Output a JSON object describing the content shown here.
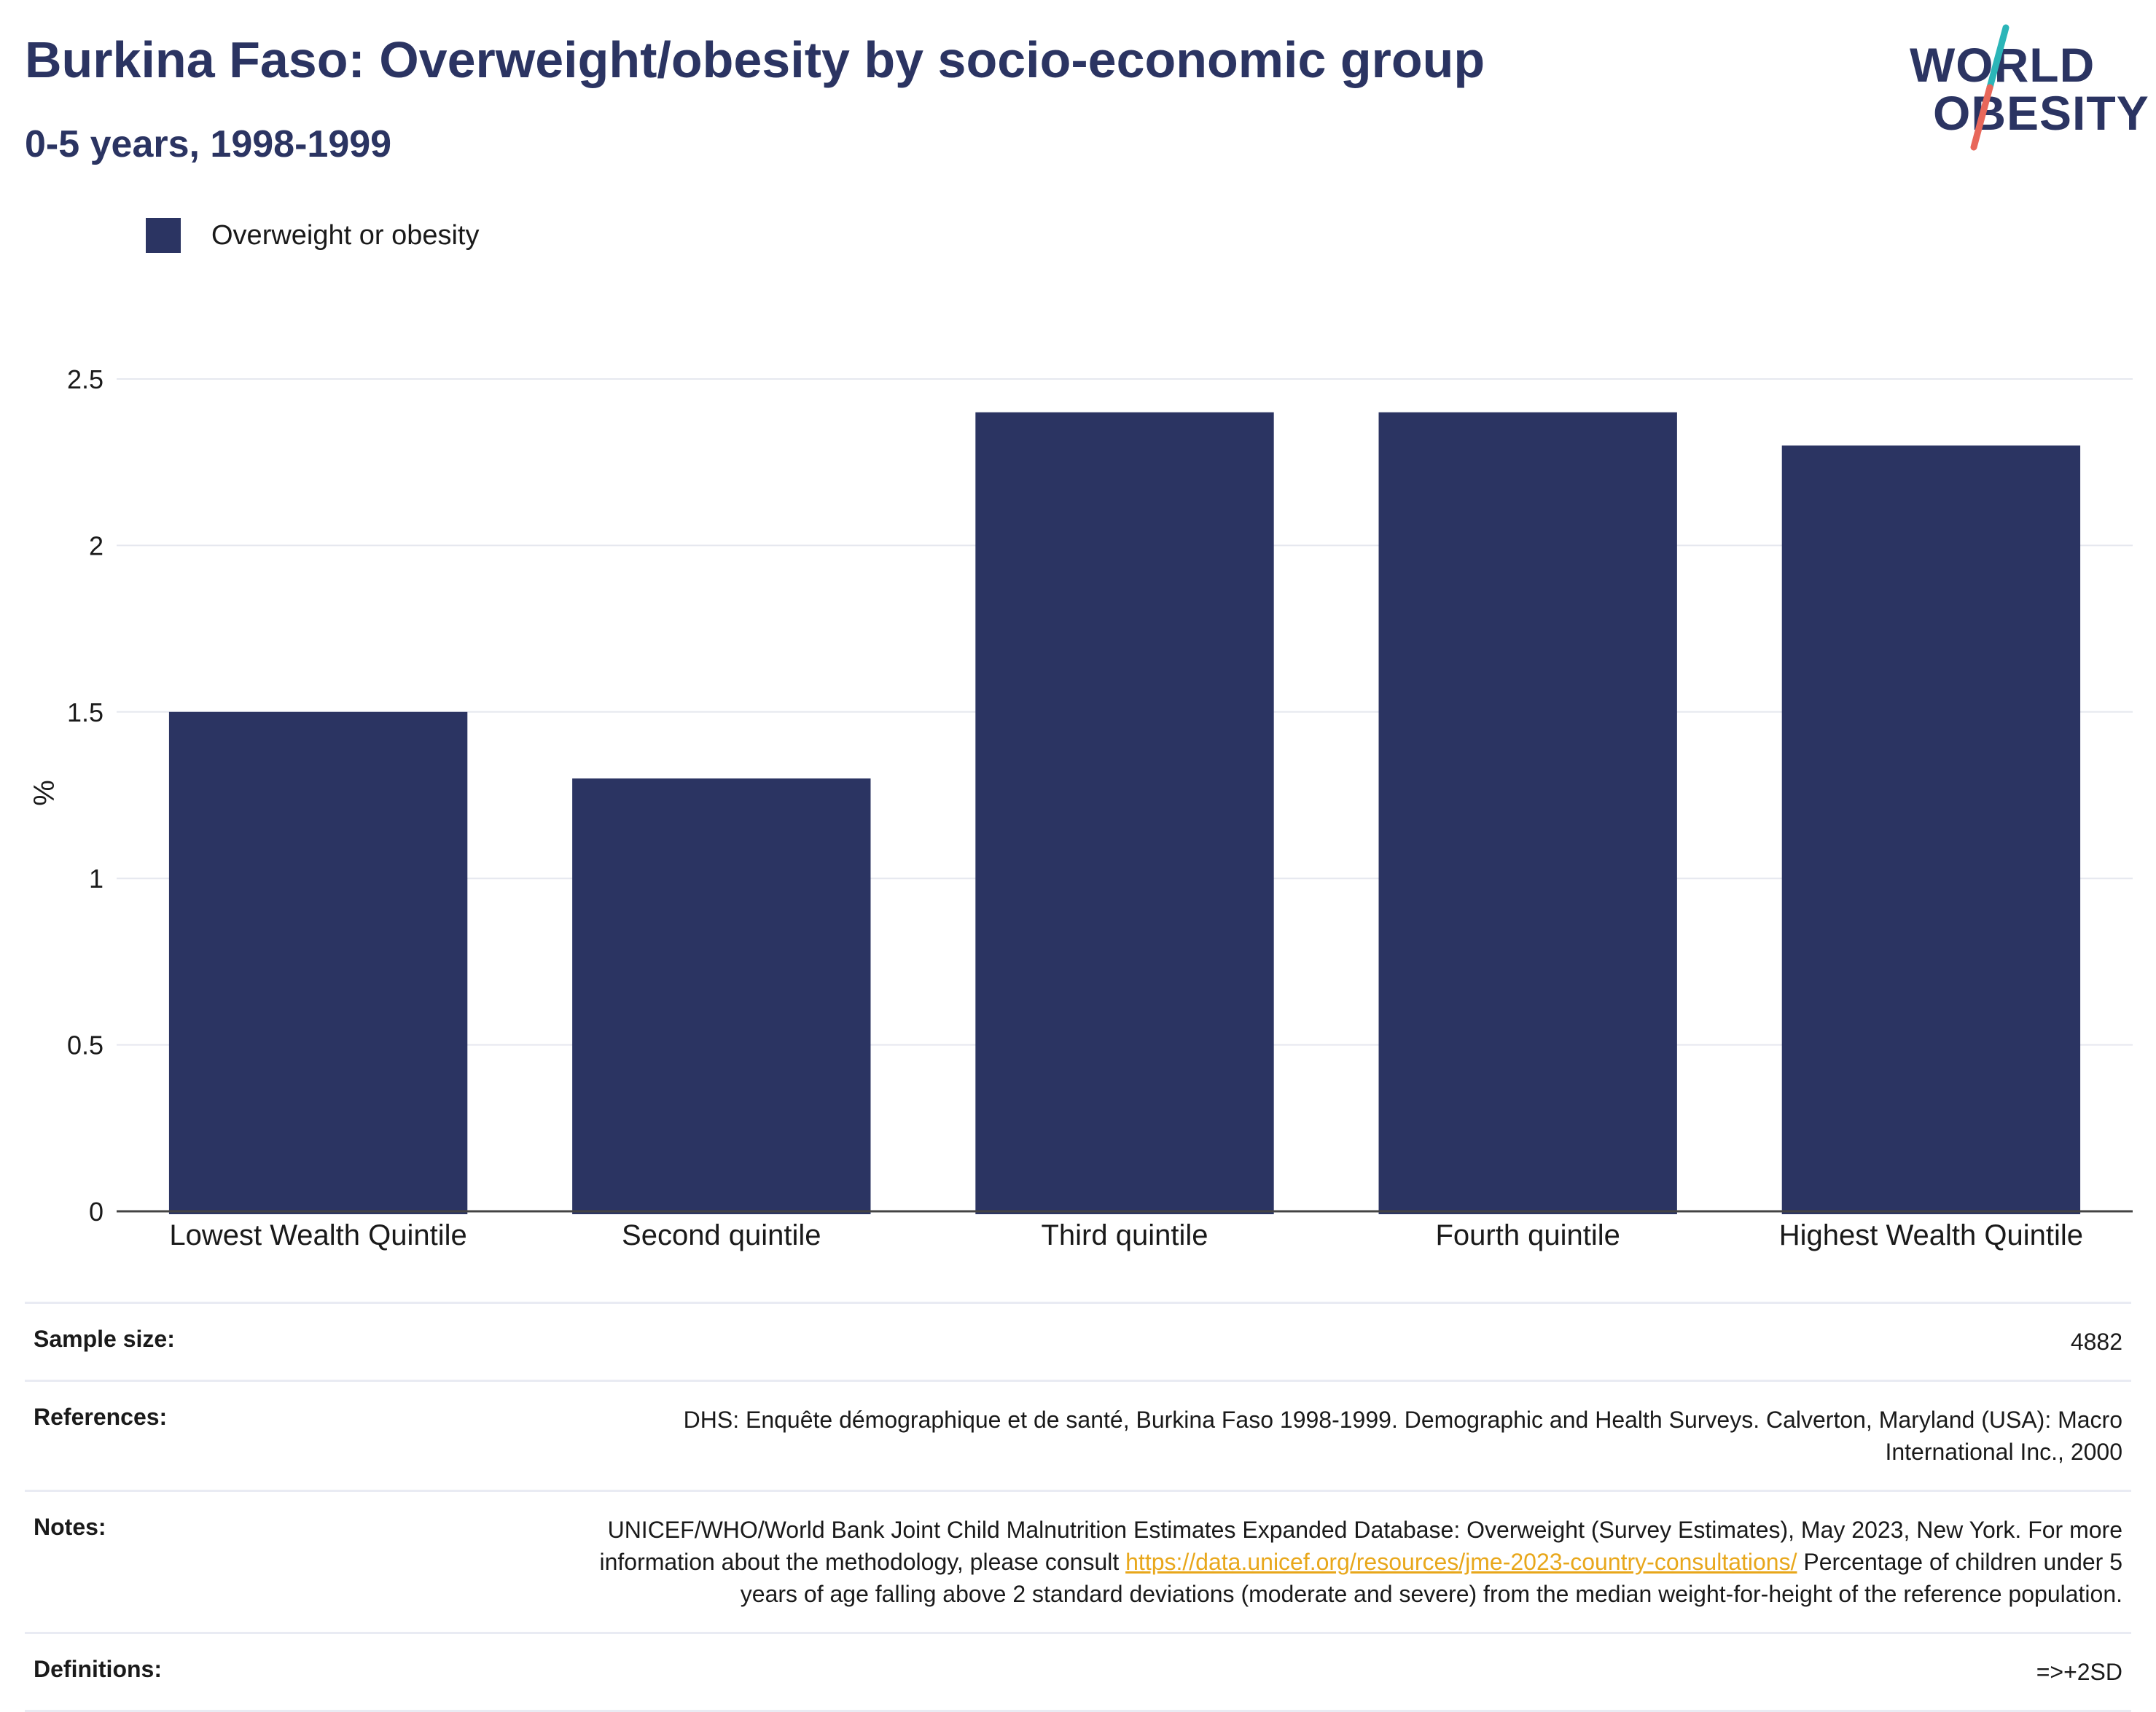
{
  "header": {
    "title": "Burkina Faso: Overweight/obesity by socio-economic group",
    "subtitle": "0-5 years, 1998-1999"
  },
  "logo": {
    "line1": "WORLD",
    "line2": "OBESITY",
    "colors": {
      "text": "#2b3462",
      "slash_top": "#2bb5b8",
      "slash_bottom": "#e8675a"
    }
  },
  "colors": {
    "bar": "#2b3462",
    "grid": "#e6e8ef",
    "axis": "#444444",
    "link": "#e8a71b"
  },
  "chart_data": {
    "type": "bar",
    "categories": [
      "Lowest Wealth Quintile",
      "Second quintile",
      "Third quintile",
      "Fourth quintile",
      "Highest Wealth Quintile"
    ],
    "series": [
      {
        "name": "Overweight or obesity",
        "values": [
          1.5,
          1.3,
          2.4,
          2.4,
          2.3
        ]
      }
    ],
    "ylabel": "%",
    "ylim": [
      0,
      2.5
    ],
    "yticks": [
      {
        "value": 0,
        "label": "0"
      },
      {
        "value": 0.5,
        "label": "0.5"
      },
      {
        "value": 1,
        "label": "1"
      },
      {
        "value": 1.5,
        "label": "1.5"
      },
      {
        "value": 2,
        "label": "2"
      },
      {
        "value": 2.5,
        "label": "2.5"
      }
    ],
    "grid": true,
    "legend": "top-left"
  },
  "info": {
    "sample_size": {
      "label": "Sample size:",
      "value": "4882"
    },
    "references": {
      "label": "References:",
      "value": "DHS: Enquête démographique et de santé, Burkina Faso 1998-1999. Demographic and Health Surveys. Calverton, Maryland (USA): Macro International Inc., 2000"
    },
    "notes": {
      "label": "Notes:",
      "text_before": "UNICEF/WHO/World Bank Joint Child Malnutrition Estimates Expanded Database: Overweight (Survey Estimates), May 2023, New York. For more information about the methodology, please consult ",
      "link": "https://data.unicef.org/resources/jme-2023-country-consultations/",
      "text_after": " Percentage of children under 5 years of age falling above 2 standard deviations (moderate and severe) from the median weight-for-height of the reference population."
    },
    "definitions": {
      "label": "Definitions:",
      "value": "=>+2SD"
    }
  }
}
